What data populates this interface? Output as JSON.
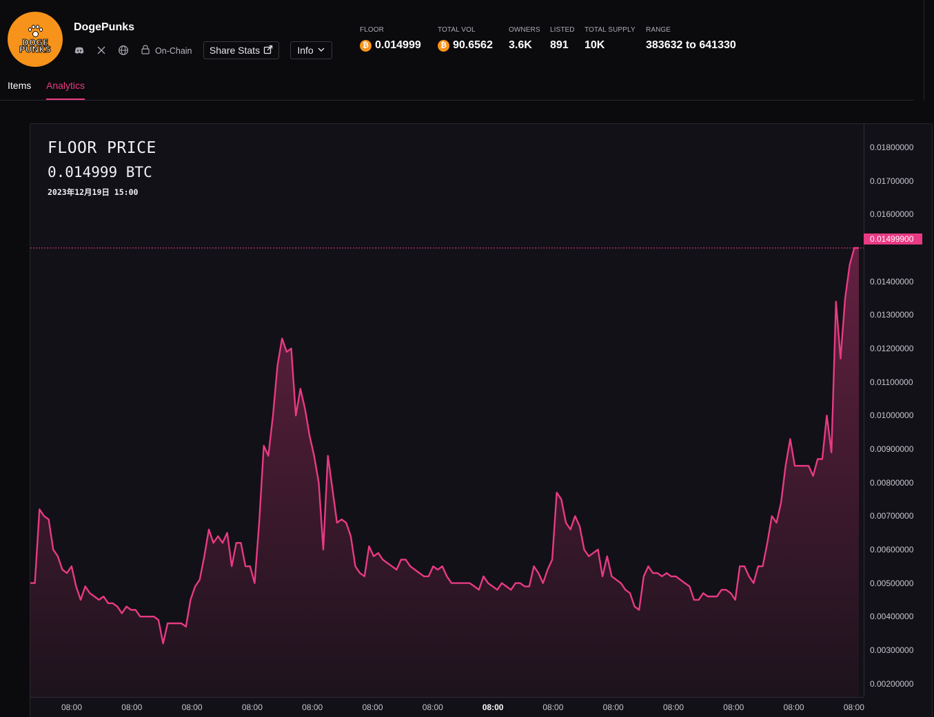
{
  "header": {
    "collection_name": "DogePunks",
    "logo_text": "DOGE PUNKS",
    "on_chain_label": "On-Chain",
    "share_stats_label": "Share Stats",
    "info_label": "Info",
    "social_icons": [
      "discord-icon",
      "x-icon",
      "globe-icon",
      "lock-icon"
    ],
    "stats": [
      {
        "label": "FLOOR",
        "value": "0.014999",
        "currency": "bitcoin-icon"
      },
      {
        "label": "TOTAL VOL",
        "value": "90.6562",
        "currency": "bitcoin-icon"
      },
      {
        "label": "OWNERS",
        "value": "3.6K"
      },
      {
        "label": "LISTED",
        "value": "891"
      },
      {
        "label": "TOTAL SUPPLY",
        "value": "10K"
      },
      {
        "label": "RANGE",
        "value": "383632 to 641330"
      }
    ]
  },
  "tabs": [
    {
      "label": "Items",
      "active": false
    },
    {
      "label": "Analytics",
      "active": true
    }
  ],
  "chart_data": {
    "type": "area",
    "title": "FLOOR PRICE",
    "current_value_label": "0.014999 BTC",
    "timestamp_label": "2023年12月19日 15:00",
    "current_price_tag": "0.01499900",
    "y_ticks": [
      "0.01800000",
      "0.01700000",
      "0.01600000",
      "0.01499900",
      "0.01400000",
      "0.01300000",
      "0.01200000",
      "0.01100000",
      "0.01000000",
      "0.00900000",
      "0.00800000",
      "0.00700000",
      "0.00600000",
      "0.00500000",
      "0.00400000",
      "0.00300000",
      "0.00200000"
    ],
    "ylim": [
      0.0016,
      0.0187
    ],
    "x_ticks": [
      {
        "label": "08:00",
        "bold": false
      },
      {
        "label": "08:00",
        "bold": false
      },
      {
        "label": "08:00",
        "bold": false
      },
      {
        "label": "08:00",
        "bold": false
      },
      {
        "label": "08:00",
        "bold": false
      },
      {
        "label": "08:00",
        "bold": false
      },
      {
        "label": "08:00",
        "bold": false
      },
      {
        "label": "08:00",
        "bold": true
      },
      {
        "label": "08:00",
        "bold": false
      },
      {
        "label": "08:00",
        "bold": false
      },
      {
        "label": "08:00",
        "bold": false
      },
      {
        "label": "08:00",
        "bold": false
      },
      {
        "label": "08:00",
        "bold": false
      },
      {
        "label": "08:00",
        "bold": false
      }
    ],
    "series": [
      {
        "values": [
          0.005,
          0.005,
          0.0072,
          0.007,
          0.0069,
          0.006,
          0.0058,
          0.0054,
          0.0053,
          0.0055,
          0.0049,
          0.0045,
          0.0049,
          0.0047,
          0.0046,
          0.0045,
          0.0046,
          0.0044,
          0.0044,
          0.0043,
          0.0041,
          0.0043,
          0.0042,
          0.0042,
          0.004,
          0.004,
          0.004,
          0.004,
          0.0039,
          0.0032,
          0.0038,
          0.0038,
          0.0038,
          0.0038,
          0.0037,
          0.0045,
          0.0049,
          0.0051,
          0.0058,
          0.0066,
          0.0062,
          0.0064,
          0.0062,
          0.0065,
          0.0055,
          0.0062,
          0.0062,
          0.0055,
          0.0055,
          0.005,
          0.0068,
          0.0091,
          0.0088,
          0.01,
          0.0115,
          0.0123,
          0.0119,
          0.012,
          0.01,
          0.0108,
          0.0102,
          0.0094,
          0.0088,
          0.008,
          0.006,
          0.0088,
          0.0078,
          0.0068,
          0.0069,
          0.0068,
          0.0064,
          0.0055,
          0.0053,
          0.0052,
          0.0061,
          0.0058,
          0.0059,
          0.0057,
          0.0056,
          0.0055,
          0.0054,
          0.0057,
          0.0057,
          0.0055,
          0.0054,
          0.0053,
          0.0052,
          0.0052,
          0.0055,
          0.0054,
          0.0055,
          0.0052,
          0.005,
          0.005,
          0.005,
          0.005,
          0.005,
          0.0049,
          0.0048,
          0.0052,
          0.005,
          0.0049,
          0.0048,
          0.005,
          0.0049,
          0.0048,
          0.005,
          0.005,
          0.0049,
          0.0049,
          0.0055,
          0.0053,
          0.005,
          0.0054,
          0.0057,
          0.0077,
          0.0075,
          0.0068,
          0.0066,
          0.007,
          0.0067,
          0.006,
          0.0058,
          0.0059,
          0.006,
          0.0052,
          0.0058,
          0.0052,
          0.0051,
          0.005,
          0.0048,
          0.0047,
          0.0043,
          0.0042,
          0.0052,
          0.0055,
          0.0053,
          0.0053,
          0.0052,
          0.0053,
          0.0052,
          0.0052,
          0.0051,
          0.005,
          0.0049,
          0.0045,
          0.0045,
          0.0047,
          0.0046,
          0.0046,
          0.0046,
          0.0048,
          0.0048,
          0.0047,
          0.0045,
          0.0055,
          0.0055,
          0.0052,
          0.005,
          0.0055,
          0.0055,
          0.0062,
          0.007,
          0.0068,
          0.0074,
          0.0085,
          0.0093,
          0.0085,
          0.0085,
          0.0085,
          0.0085,
          0.0082,
          0.0087,
          0.0087,
          0.01,
          0.0089,
          0.0134,
          0.0117,
          0.0135,
          0.0145,
          0.015,
          0.015
        ]
      }
    ]
  }
}
